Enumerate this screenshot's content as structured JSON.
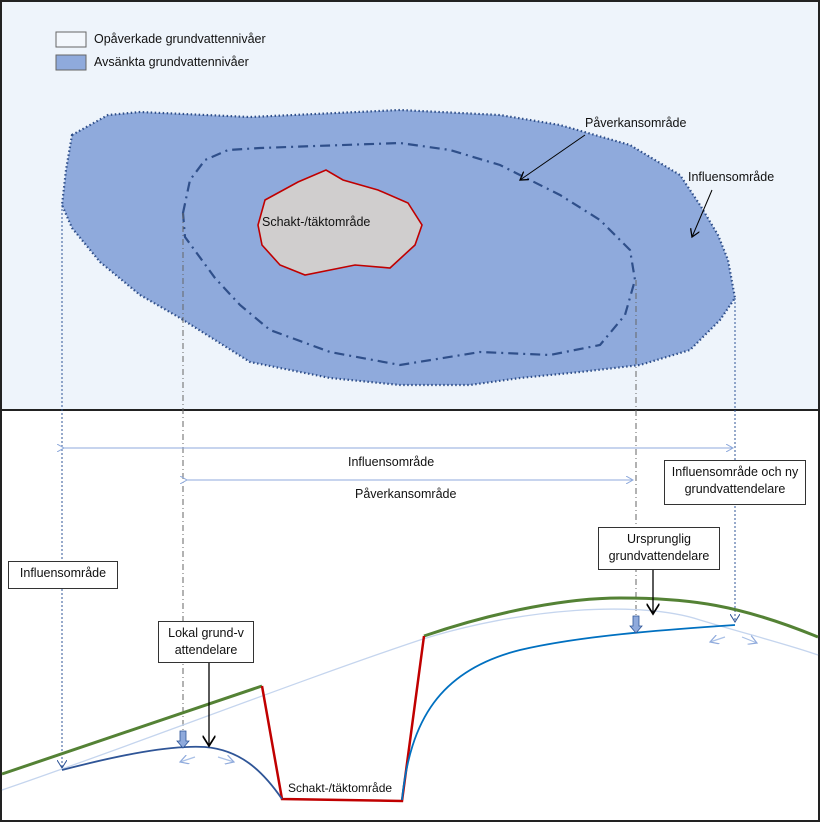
{
  "legend": {
    "items": [
      {
        "label": "Opåverkade grundvattennivåer",
        "color": "#f3f7fc"
      },
      {
        "label": "Avsänkta grundvattennivåer",
        "color": "#8faadc"
      }
    ]
  },
  "plan_view": {
    "excavation_label": "Schakt-/täktområde",
    "impact_area_label": "Påverkansområde",
    "influence_area_label": "Influensområde"
  },
  "section_view": {
    "influence_span_label": "Influensområde",
    "impact_span_label": "Påverkansområde",
    "left_influence_box": "Influensområde",
    "right_influence_box": "Influensområde och ny grundvattendelare",
    "original_divide_box": "Ursprunglig grundvattendelare",
    "local_divide_box": "Lokal grund-vattendelare",
    "excavation_label": "Schakt-/täktområde"
  },
  "colors": {
    "plan_background": "#eef4fb",
    "lowered_area": "#8faadc",
    "boundary": "#2f4f8a",
    "excavation_border": "#c00000",
    "excavation_fill": "#d0cece",
    "ground": "#548235",
    "groundwater": "#0070c0"
  }
}
